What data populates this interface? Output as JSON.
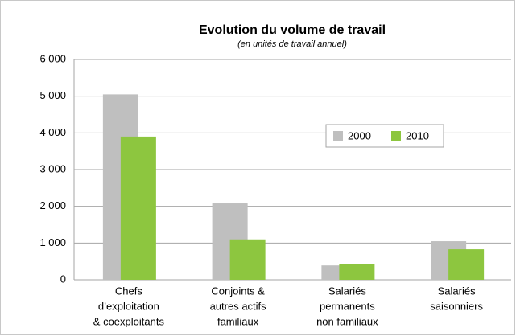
{
  "chart_data": {
    "type": "bar",
    "title": "Evolution du volume de travail",
    "subtitle": "(en unités de travail annuel)",
    "categories": [
      [
        "Chefs",
        "d’exploitation",
        "& coexploitants"
      ],
      [
        "Conjoints &",
        "autres actifs",
        "familiaux"
      ],
      [
        "Salariés",
        "permanents",
        "non familiaux"
      ],
      [
        "Salariés",
        "saisonniers"
      ]
    ],
    "series": [
      {
        "name": "2000",
        "color": "#bfbfbf",
        "values": [
          5050,
          2080,
          390,
          1050
        ]
      },
      {
        "name": "2010",
        "color": "#8dc63f",
        "values": [
          3900,
          1100,
          430,
          830
        ]
      }
    ],
    "ylim": [
      0,
      6000
    ],
    "yticks": [
      0,
      {
        "value": 1000,
        "label": "1 000"
      },
      {
        "value": 2000,
        "label": "2 000"
      },
      {
        "value": 3000,
        "label": "3 000"
      },
      {
        "value": 4000,
        "label": "4 000"
      },
      {
        "value": 5000,
        "label": "5 000"
      },
      {
        "value": 6000,
        "label": "6 000"
      }
    ],
    "grid": true
  }
}
